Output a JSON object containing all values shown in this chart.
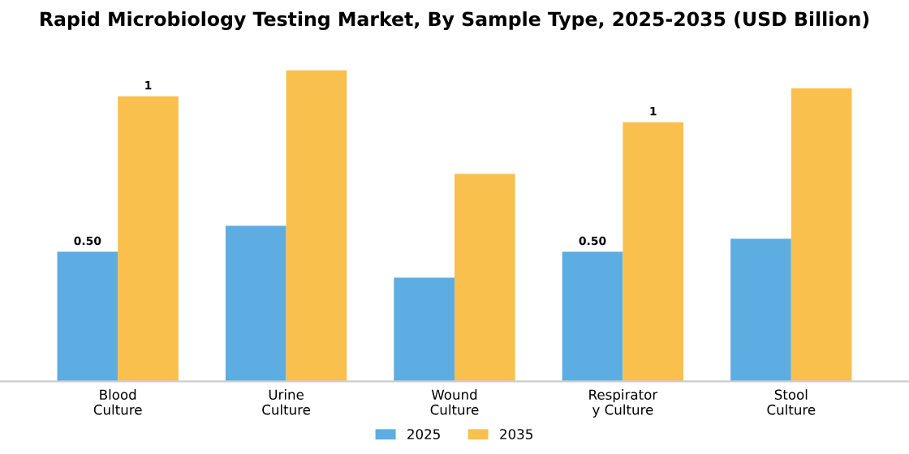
{
  "chart_data": {
    "type": "bar",
    "title": "Rapid Microbiology Testing Market, By Sample Type, 2025-2035 (USD Billion)",
    "categories": [
      "Blood\nCulture",
      "Urine\nCulture",
      "Wound\nCulture",
      "Respirator\ny Culture",
      "Stool\nCulture"
    ],
    "legend": "bottom",
    "grid": false,
    "series": [
      {
        "name": "2025",
        "color": "#5dade2",
        "values": [
          0.5,
          0.6,
          0.4,
          0.5,
          0.55
        ],
        "value_labels": [
          "0.50",
          null,
          null,
          "0.50",
          null
        ]
      },
      {
        "name": "2035",
        "color": "#f9c04d",
        "values": [
          1.1,
          1.2,
          0.8,
          1.0,
          1.13
        ],
        "value_labels": [
          "1",
          null,
          null,
          "1",
          null
        ]
      }
    ]
  }
}
